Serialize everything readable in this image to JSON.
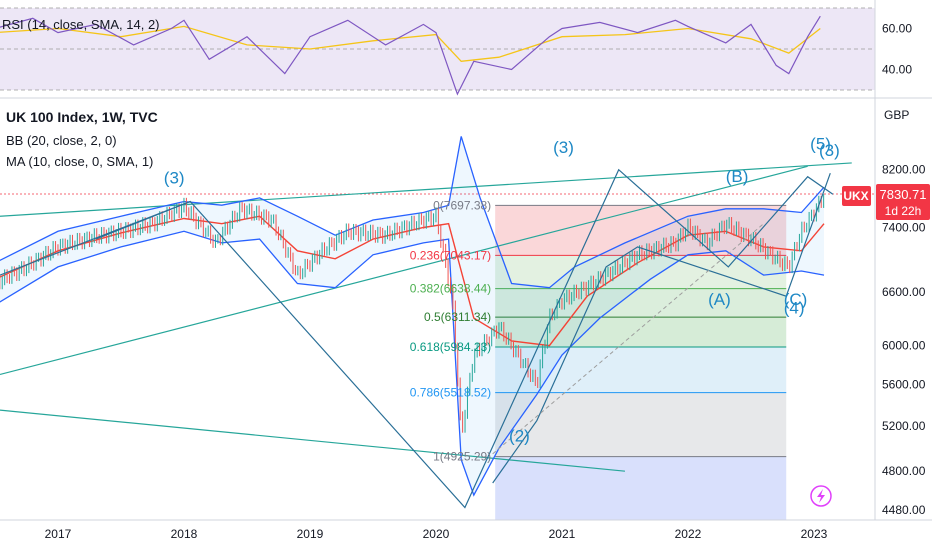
{
  "header": {
    "rsi_label": "RSI (14, close, SMA, 14, 2)",
    "title": "UK 100 Index, 1W, TVC",
    "bb_label": "BB (20, close, 2, 0)",
    "ma_label": "MA (10, close, 0, SMA, 1)"
  },
  "price_badge": {
    "symbol": "UKX",
    "price": "7830.71",
    "countdown": "1d 22h",
    "currency": "GBP"
  },
  "colors": {
    "accent_red": "#f23645",
    "bollinger": "#2962ff",
    "ma": "#f44336",
    "rsi": "#7e57c2",
    "rsi_sma": "#f5c518",
    "wave_lines": "#2a6f97",
    "trend_lines": "#26a69a",
    "wave_labels": "#1e88c5"
  },
  "chart_data": [
    {
      "type": "line",
      "name": "RSI panel",
      "y_ticks": [
        "60.00",
        "40.00"
      ],
      "series": [
        {
          "name": "RSI",
          "x": [
            2016.5,
            2016.8,
            2017.0,
            2017.3,
            2017.6,
            2017.9,
            2018.0,
            2018.2,
            2018.5,
            2018.8,
            2019.0,
            2019.3,
            2019.6,
            2019.9,
            2020.0,
            2020.17,
            2020.3,
            2020.6,
            2020.9,
            2021.0,
            2021.3,
            2021.6,
            2021.9,
            2022.0,
            2022.3,
            2022.5,
            2022.7,
            2022.8,
            2022.95,
            2023.05
          ],
          "values": [
            60,
            65,
            58,
            62,
            52,
            60,
            64,
            45,
            56,
            38,
            56,
            64,
            52,
            62,
            58,
            28,
            44,
            40,
            56,
            60,
            63,
            58,
            64,
            61,
            53,
            62,
            42,
            38,
            56,
            66
          ]
        },
        {
          "name": "RSI SMA",
          "x": [
            2016.5,
            2017.0,
            2017.5,
            2018.0,
            2018.5,
            2019.0,
            2019.5,
            2020.0,
            2020.2,
            2020.5,
            2021.0,
            2021.5,
            2022.0,
            2022.5,
            2022.8,
            2023.05
          ],
          "values": [
            58,
            60,
            56,
            61,
            52,
            50,
            54,
            57,
            44,
            46,
            56,
            57,
            60,
            55,
            48,
            60
          ]
        }
      ]
    },
    {
      "type": "line",
      "title": "UK 100 Index, 1W, TVC",
      "y_unit": "GBP",
      "y_ticks": [
        "8200.00",
        "7400.00",
        "6600.00",
        "6000.00",
        "5600.00",
        "5200.00",
        "4800.00",
        "4480.00"
      ],
      "x_ticks": [
        "2017",
        "2018",
        "2019",
        "2020",
        "2021",
        "2022",
        "2023"
      ],
      "last_price": 7830.71,
      "series": [
        {
          "name": "UKX close",
          "x": [
            2016.5,
            2016.75,
            2017.0,
            2017.3,
            2017.5,
            2017.75,
            2018.0,
            2018.25,
            2018.45,
            2018.7,
            2018.9,
            2019.1,
            2019.3,
            2019.6,
            2019.9,
            2020.0,
            2020.13,
            2020.2,
            2020.3,
            2020.5,
            2020.8,
            2020.9,
            2021.0,
            2021.3,
            2021.6,
            2021.9,
            2022.0,
            2022.15,
            2022.3,
            2022.5,
            2022.7,
            2022.8,
            2022.9,
            2023.0,
            2023.08
          ],
          "values": [
            6700,
            6900,
            7150,
            7280,
            7350,
            7450,
            7680,
            7200,
            7650,
            7500,
            6800,
            7100,
            7350,
            7300,
            7500,
            7550,
            6500,
            5100,
            5900,
            6200,
            5600,
            6300,
            6500,
            6750,
            7050,
            7200,
            7400,
            7200,
            7450,
            7250,
            7000,
            6900,
            7350,
            7600,
            7830
          ]
        },
        {
          "name": "MA (10)",
          "x": [
            2016.5,
            2017.0,
            2017.5,
            2018.0,
            2018.3,
            2018.6,
            2018.9,
            2019.2,
            2019.5,
            2019.9,
            2020.1,
            2020.3,
            2020.6,
            2020.9,
            2021.2,
            2021.6,
            2022.0,
            2022.3,
            2022.6,
            2022.9,
            2023.08
          ],
          "values": [
            6750,
            7100,
            7330,
            7520,
            7450,
            7550,
            7100,
            7000,
            7250,
            7400,
            7450,
            6300,
            6050,
            6000,
            6550,
            6950,
            7300,
            7350,
            7150,
            7100,
            7450
          ]
        },
        {
          "name": "BB upper",
          "x": [
            2016.5,
            2017.0,
            2017.5,
            2018.0,
            2018.3,
            2018.6,
            2018.9,
            2019.2,
            2019.5,
            2019.9,
            2020.1,
            2020.2,
            2020.35,
            2020.6,
            2020.9,
            2021.1,
            2021.5,
            2022.0,
            2022.3,
            2022.6,
            2022.9,
            2023.08
          ],
          "values": [
            6950,
            7350,
            7550,
            7750,
            7700,
            7800,
            7550,
            7300,
            7500,
            7600,
            7700,
            8700,
            7800,
            6700,
            6650,
            6900,
            7200,
            7550,
            7650,
            7650,
            7600,
            7950
          ]
        },
        {
          "name": "BB lower",
          "x": [
            2016.5,
            2017.0,
            2017.5,
            2018.0,
            2018.3,
            2018.6,
            2018.9,
            2019.2,
            2019.5,
            2019.9,
            2020.1,
            2020.2,
            2020.3,
            2020.5,
            2020.8,
            2021.0,
            2021.3,
            2021.7,
            2022.0,
            2022.3,
            2022.6,
            2022.9,
            2023.08
          ],
          "values": [
            6450,
            6900,
            7150,
            7350,
            7200,
            7250,
            6700,
            6650,
            7050,
            7200,
            7250,
            4900,
            4600,
            5000,
            5500,
            5900,
            6300,
            6750,
            7050,
            7100,
            6800,
            6850,
            6800
          ]
        }
      ],
      "fibonacci": {
        "range": [
          4925.29,
          7697.38
        ],
        "levels": [
          {
            "ratio": 0,
            "price": 7697.38,
            "label": "0(7697.38)"
          },
          {
            "ratio": 0.236,
            "price": 7043.17,
            "label": "0.236(7043.17)"
          },
          {
            "ratio": 0.382,
            "price": 6638.44,
            "label": "0.382(6638.44)"
          },
          {
            "ratio": 0.5,
            "price": 6311.34,
            "label": "0.5(6311.34)"
          },
          {
            "ratio": 0.618,
            "price": 5984.23,
            "label": "0.618(5984.23)"
          },
          {
            "ratio": 0.786,
            "price": 5518.52,
            "label": "0.786(5518.52)"
          },
          {
            "ratio": 1,
            "price": 4925.29,
            "label": "1(4925.29)"
          }
        ]
      },
      "wave_labels": [
        "(3)",
        "(3)",
        "(5)",
        "(3)",
        "(B)",
        "(A)",
        "(C)",
        "(4)",
        "(2)"
      ]
    }
  ]
}
